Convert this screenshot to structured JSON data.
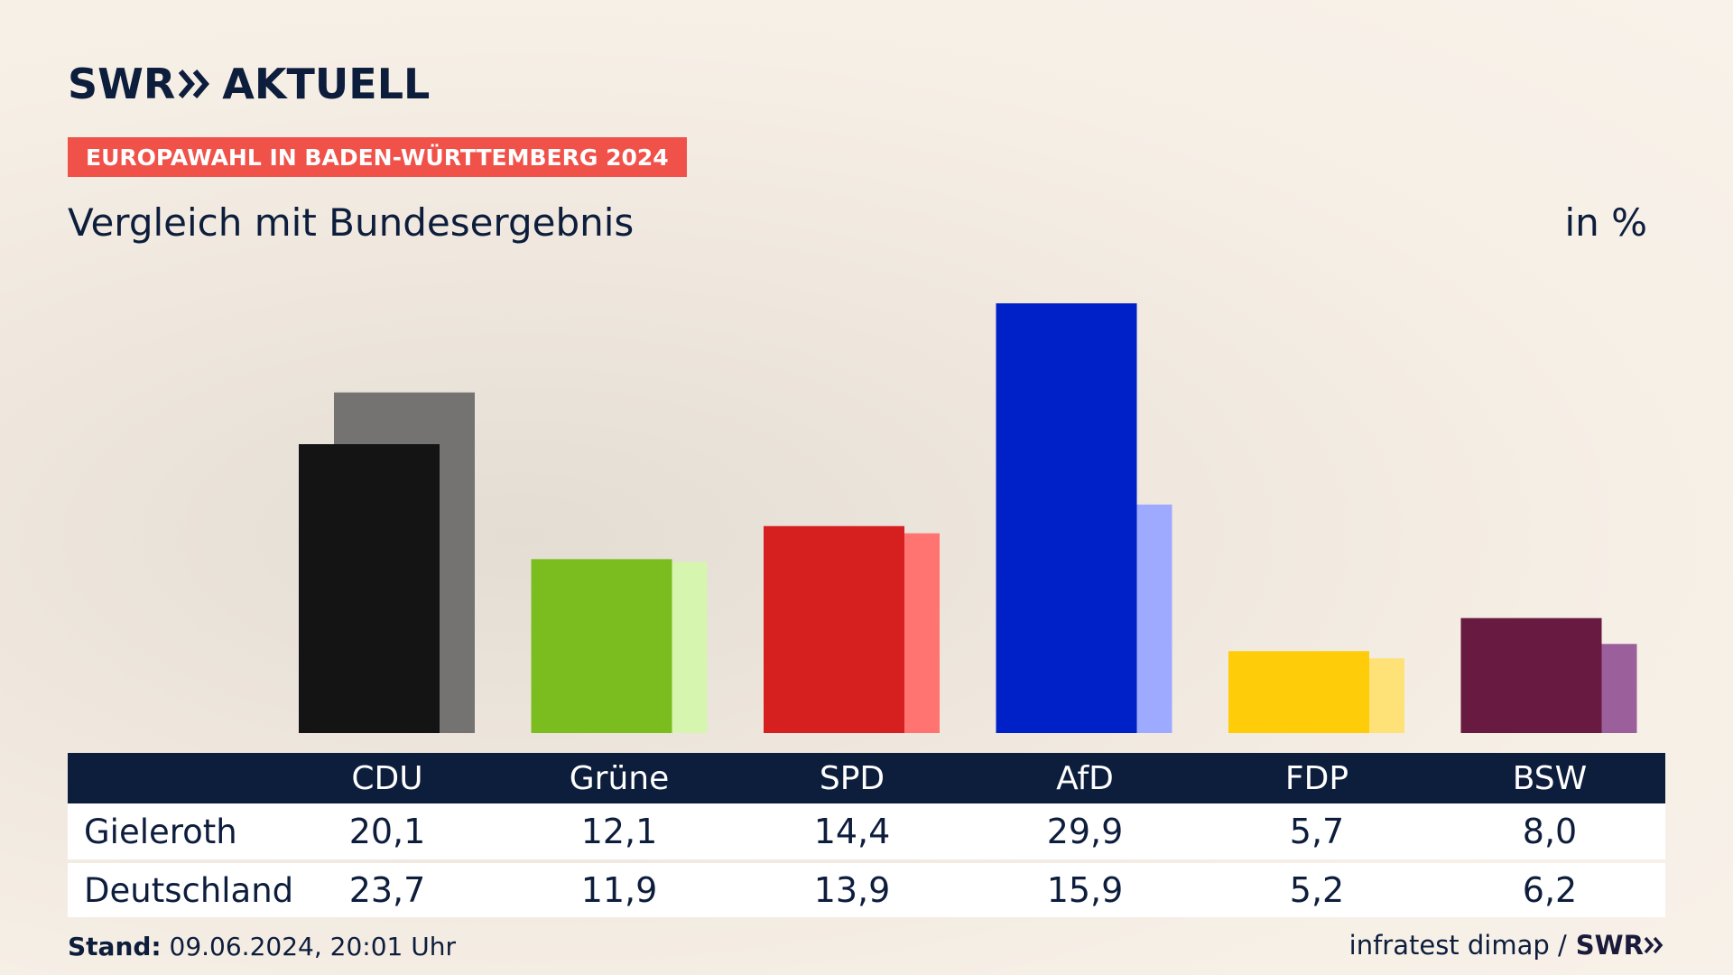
{
  "header": {
    "logo_left": "SWR",
    "logo_right": "AKTUELL",
    "tag": "EUROPAWAHL IN BADEN-WÜRTTEMBERG 2024",
    "subtitle": "Vergleich mit Bundesergebnis",
    "unit": "in %"
  },
  "chart_data": {
    "type": "bar",
    "categories": [
      "CDU",
      "Grüne",
      "SPD",
      "AfD",
      "FDP",
      "BSW"
    ],
    "series": [
      {
        "name": "Gieleroth",
        "values": [
          20.1,
          12.1,
          14.4,
          29.9,
          5.7,
          8.0
        ]
      },
      {
        "name": "Deutschland",
        "values": [
          23.7,
          11.9,
          13.9,
          15.9,
          5.2,
          6.2
        ]
      }
    ],
    "colors_primary": [
      "#141414",
      "#7bbd1e",
      "#d61f1f",
      "#0020c8",
      "#ffcc0a",
      "#681a40"
    ],
    "colors_secondary": [
      "#757371",
      "#d6f5ae",
      "#ff7470",
      "#9eaaff",
      "#ffe277",
      "#9b5f9b"
    ],
    "ylim": [
      0,
      30
    ]
  },
  "table": {
    "headers": [
      "CDU",
      "Grüne",
      "SPD",
      "AfD",
      "FDP",
      "BSW"
    ],
    "rows": [
      {
        "label": "Gieleroth",
        "values": [
          "20,1",
          "12,1",
          "14,4",
          "29,9",
          "5,7",
          "8,0"
        ]
      },
      {
        "label": "Deutschland",
        "values": [
          "23,7",
          "11,9",
          "13,9",
          "15,9",
          "5,2",
          "6,2"
        ]
      }
    ]
  },
  "footer": {
    "stand_label": "Stand:",
    "stand_value": " 09.06.2024, 20:01 Uhr",
    "source": "infratest dimap /",
    "source_brand": "SWR"
  }
}
